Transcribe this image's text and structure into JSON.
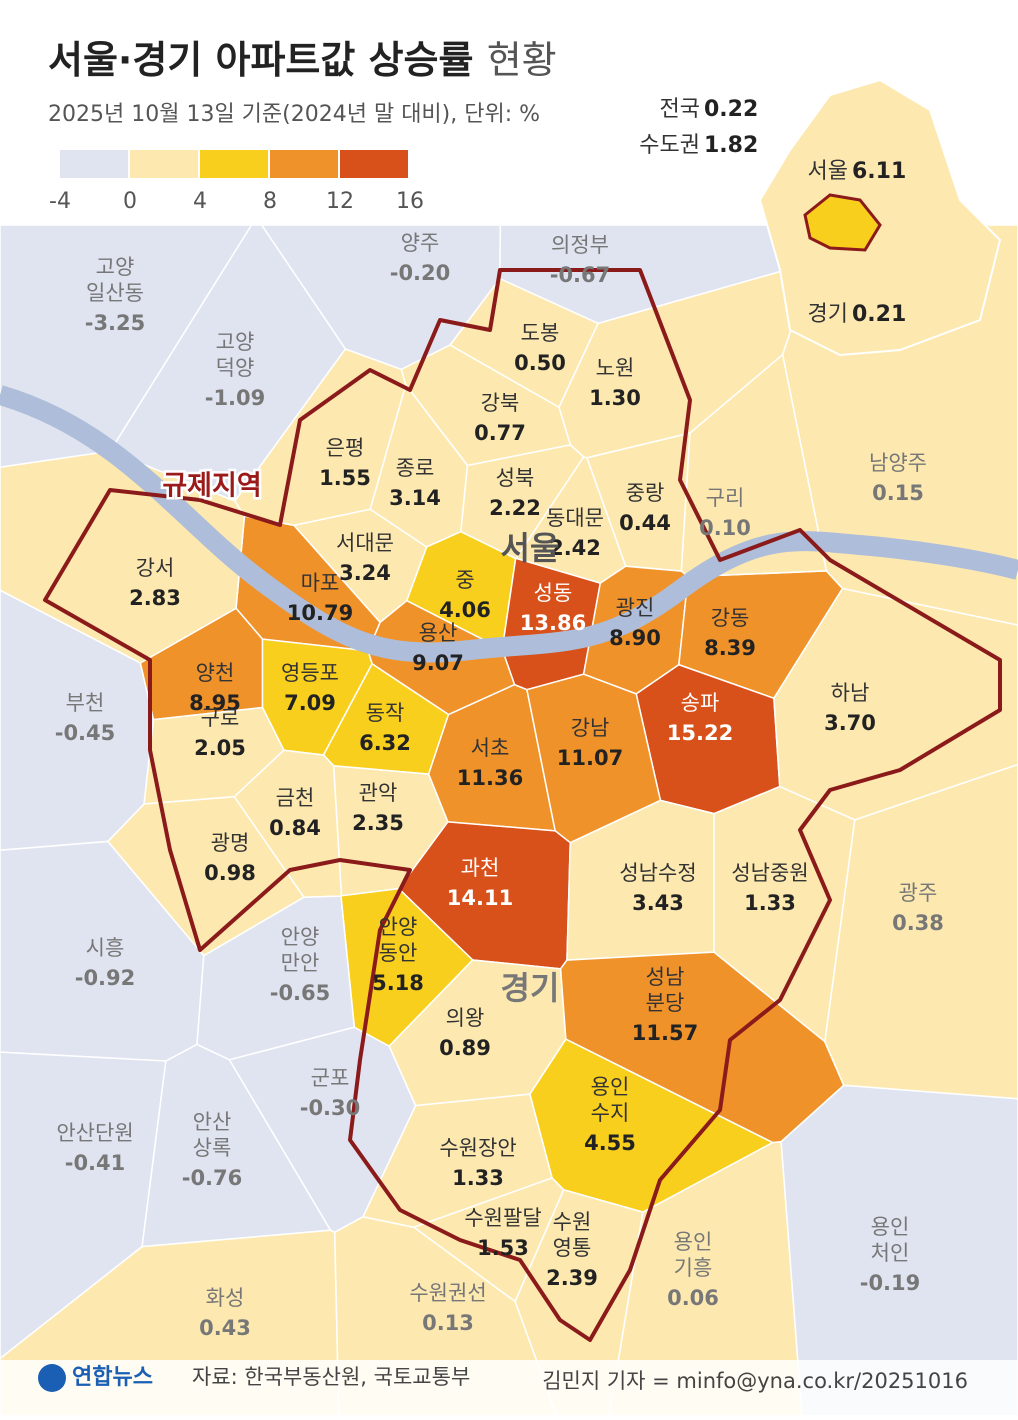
{
  "header": {
    "title": "서울·경기 아파트값 상승률",
    "title_suffix": "현황",
    "subtitle": "2025년 10월 13일 기준(2024년 말 대비), 단위: %"
  },
  "legend": {
    "ticks": [
      -4,
      0,
      4,
      8,
      12,
      16
    ],
    "colors": [
      "#dfe4f0",
      "#fde9b0",
      "#f9cf1e",
      "#f0922a",
      "#d8501a"
    ]
  },
  "summary": [
    {
      "name": "전국",
      "value": "0.22"
    },
    {
      "name": "수도권",
      "value": "1.82"
    }
  ],
  "inset": [
    {
      "name": "서울",
      "value": "6.11"
    },
    {
      "name": "경기",
      "value": "0.21"
    }
  ],
  "map_labels": {
    "seoul": "서울",
    "gyeonggi": "경기",
    "regulated": "규제지역"
  },
  "regions": [
    {
      "name": [
        "도봉"
      ],
      "value": "0.50"
    },
    {
      "name": [
        "노원"
      ],
      "value": "1.30"
    },
    {
      "name": [
        "강북"
      ],
      "value": "0.77"
    },
    {
      "name": [
        "은평"
      ],
      "value": "1.55"
    },
    {
      "name": [
        "종로"
      ],
      "value": "3.14"
    },
    {
      "name": [
        "성북"
      ],
      "value": "2.22"
    },
    {
      "name": [
        "중랑"
      ],
      "value": "0.44"
    },
    {
      "name": [
        "동대문"
      ],
      "value": "2.42"
    },
    {
      "name": [
        "서대문"
      ],
      "value": "3.24"
    },
    {
      "name": [
        "마포"
      ],
      "value": "10.79"
    },
    {
      "name": [
        "중"
      ],
      "value": "4.06"
    },
    {
      "name": [
        "성동"
      ],
      "value": "13.86"
    },
    {
      "name": [
        "광진"
      ],
      "value": "8.90"
    },
    {
      "name": [
        "강동"
      ],
      "value": "8.39"
    },
    {
      "name": [
        "강서"
      ],
      "value": "2.83"
    },
    {
      "name": [
        "용산"
      ],
      "value": "9.07"
    },
    {
      "name": [
        "양천"
      ],
      "value": "8.95"
    },
    {
      "name": [
        "영등포"
      ],
      "value": "7.09"
    },
    {
      "name": [
        "송파"
      ],
      "value": "15.22"
    },
    {
      "name": [
        "구로"
      ],
      "value": "2.05"
    },
    {
      "name": [
        "동작"
      ],
      "value": "6.32"
    },
    {
      "name": [
        "서초"
      ],
      "value": "11.36"
    },
    {
      "name": [
        "강남"
      ],
      "value": "11.07"
    },
    {
      "name": [
        "금천"
      ],
      "value": "0.84"
    },
    {
      "name": [
        "관악"
      ],
      "value": "2.35"
    },
    {
      "name": [
        "과천"
      ],
      "value": "14.11"
    },
    {
      "name": [
        "하남"
      ],
      "value": "3.70"
    },
    {
      "name": [
        "광명"
      ],
      "value": "0.98"
    },
    {
      "name": [
        "성남수정"
      ],
      "value": "3.43"
    },
    {
      "name": [
        "성남중원"
      ],
      "value": "1.33"
    },
    {
      "name": [
        "안양",
        "동안"
      ],
      "value": "5.18"
    },
    {
      "name": [
        "의왕"
      ],
      "value": "0.89"
    },
    {
      "name": [
        "성남",
        "분당"
      ],
      "value": "11.57"
    },
    {
      "name": [
        "용인",
        "수지"
      ],
      "value": "4.55"
    },
    {
      "name": [
        "수원장안"
      ],
      "value": "1.33"
    },
    {
      "name": [
        "수원팔달"
      ],
      "value": "1.53"
    },
    {
      "name": [
        "수원",
        "영통"
      ],
      "value": "2.39"
    },
    {
      "name": [
        "양주"
      ],
      "value": "-0.20"
    },
    {
      "name": [
        "의정부"
      ],
      "value": "-0.67"
    },
    {
      "name": [
        "고양",
        "일산동"
      ],
      "value": "-3.25"
    },
    {
      "name": [
        "고양",
        "덕양"
      ],
      "value": "-1.09"
    },
    {
      "name": [
        "남양주"
      ],
      "value": "0.15"
    },
    {
      "name": [
        "구리"
      ],
      "value": "0.10"
    },
    {
      "name": [
        "부천"
      ],
      "value": "-0.45"
    },
    {
      "name": [
        "광주"
      ],
      "value": "0.38"
    },
    {
      "name": [
        "시흥"
      ],
      "value": "-0.92"
    },
    {
      "name": [
        "안양",
        "만안"
      ],
      "value": "-0.65"
    },
    {
      "name": [
        "군포"
      ],
      "value": "-0.30"
    },
    {
      "name": [
        "안산단원"
      ],
      "value": "-0.41"
    },
    {
      "name": [
        "안산",
        "상록"
      ],
      "value": "-0.76"
    },
    {
      "name": [
        "화성"
      ],
      "value": "0.43"
    },
    {
      "name": [
        "수원권선"
      ],
      "value": "0.13"
    },
    {
      "name": [
        "용인",
        "기흥"
      ],
      "value": "0.06"
    },
    {
      "name": [
        "용인",
        "처인"
      ],
      "value": "-0.19"
    }
  ],
  "footer": {
    "logo": "연합뉴스",
    "source": "자료: 한국부동산원, 국토교통부",
    "credit": "김민지 기자 = minfo@yna.co.kr/20251016"
  }
}
